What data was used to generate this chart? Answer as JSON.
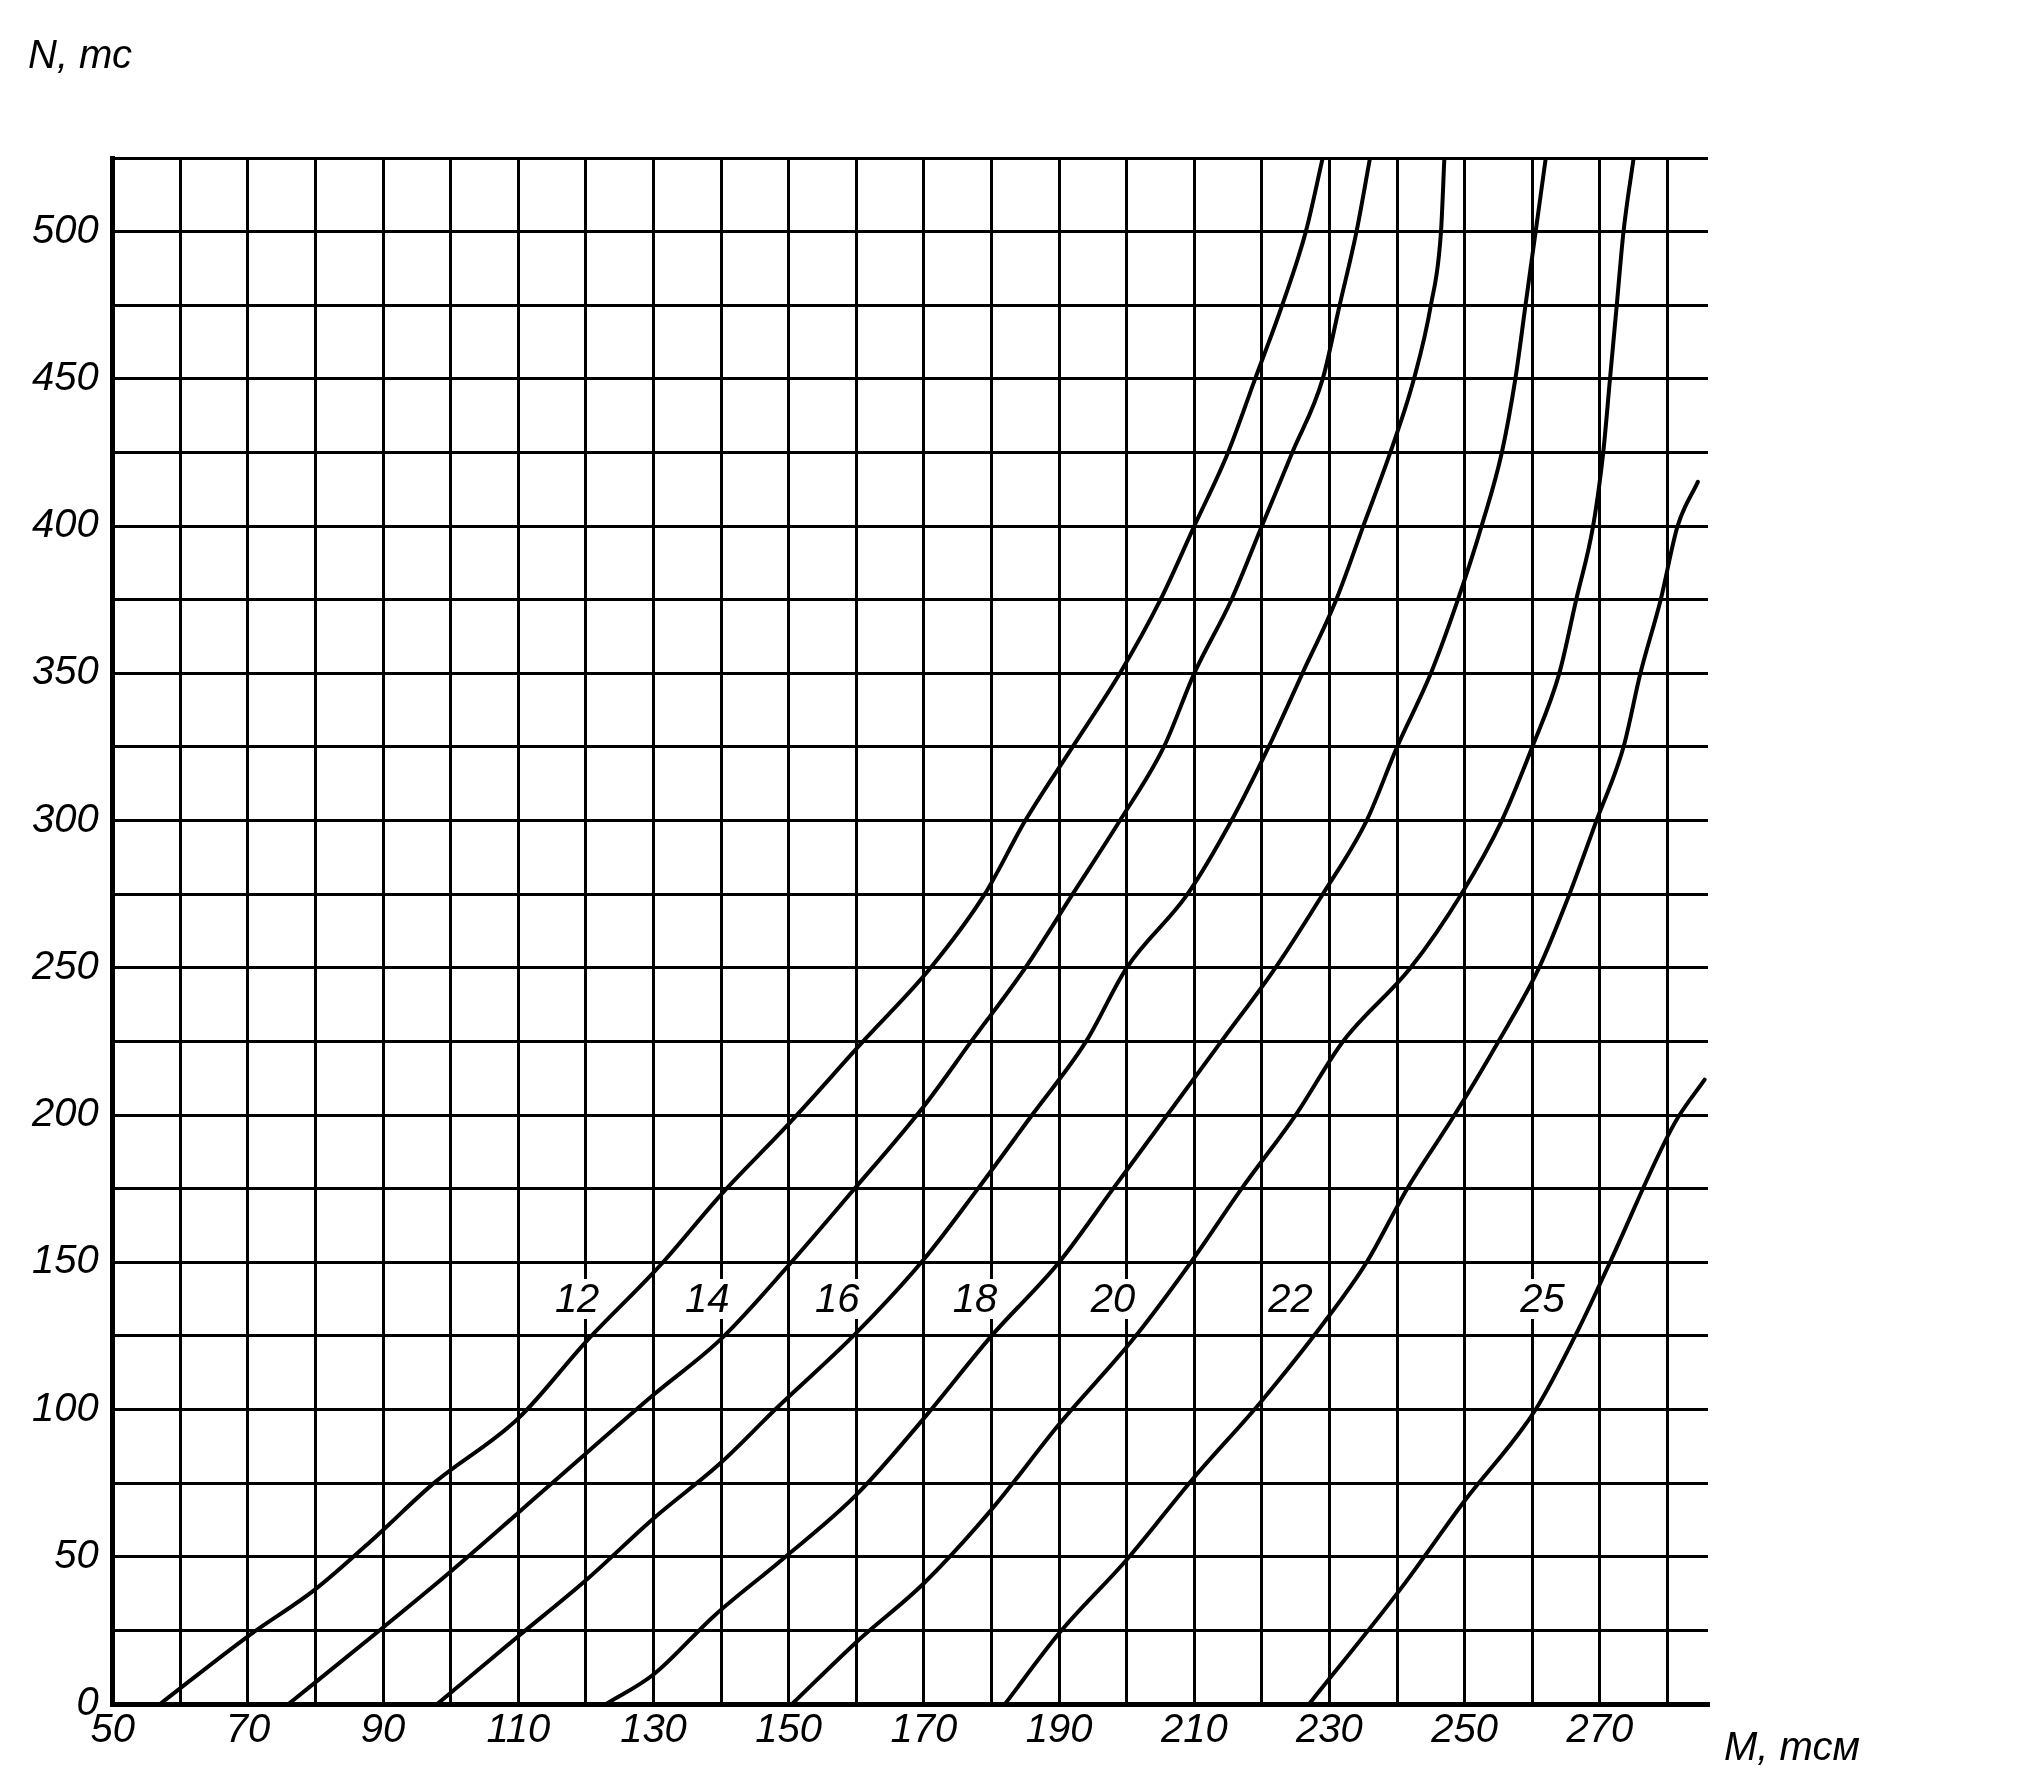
{
  "chart_data": {
    "type": "line",
    "xlabel": "M, тсм",
    "ylabel": "N, тс",
    "xlim": [
      50,
      286
    ],
    "ylim": [
      0,
      525
    ],
    "xticks": [
      50,
      {
        "value": 60,
        "label": null
      },
      70,
      {
        "value": 80,
        "label": null
      },
      90,
      {
        "value": 100,
        "label": null
      },
      110,
      {
        "value": 120,
        "label": null
      },
      130,
      {
        "value": 140,
        "label": null
      },
      150,
      {
        "value": 160,
        "label": null
      },
      170,
      {
        "value": 180,
        "label": null
      },
      190,
      {
        "value": 200,
        "label": null
      },
      210,
      {
        "value": 220,
        "label": null
      },
      230,
      {
        "value": 240,
        "label": null
      },
      250,
      {
        "value": 260,
        "label": null
      },
      270,
      {
        "value": 280,
        "label": null
      }
    ],
    "yticks": [
      0,
      {
        "value": 25,
        "label": null
      },
      50,
      {
        "value": 75,
        "label": null
      },
      100,
      {
        "value": 125,
        "label": null
      },
      150,
      {
        "value": 175,
        "label": null
      },
      200,
      {
        "value": 225,
        "label": null
      },
      250,
      {
        "value": 275,
        "label": null
      },
      300,
      {
        "value": 325,
        "label": null
      },
      350,
      {
        "value": 375,
        "label": null
      },
      400,
      {
        "value": 425,
        "label": null
      },
      450,
      {
        "value": 475,
        "label": null
      },
      500,
      {
        "value": 525,
        "label": null
      }
    ],
    "grid": true,
    "legend": false,
    "marker": "none",
    "line_style": "solid",
    "series": [
      {
        "name": "12",
        "color": "#000000",
        "x": [
          57,
          70,
          80,
          89,
          97.5,
          110,
          120,
          131,
          140,
          150,
          161,
          171,
          179,
          185,
          192,
          199,
          205,
          210,
          215,
          219,
          223,
          226.5,
          229
        ],
        "values": [
          0,
          23,
          39,
          57,
          75,
          97,
          123,
          149,
          173,
          197,
          225,
          250,
          275,
          300,
          325,
          350,
          375,
          400,
          425,
          450,
          475,
          500,
          525
        ]
      },
      {
        "name": "14",
        "color": "#000000",
        "x": [
          76,
          90,
          100,
          114.5,
          130,
          140,
          150,
          159,
          170,
          177,
          185,
          192,
          199,
          205.5,
          210,
          215.5,
          220,
          224.5,
          229,
          231.5,
          234,
          236
        ],
        "values": [
          0,
          26,
          45,
          74,
          105,
          124,
          149,
          173,
          203,
          225,
          250,
          275,
          300,
          325,
          350,
          375,
          400,
          425,
          450,
          475,
          500,
          525
        ]
      },
      {
        "name": "16",
        "color": "#000000",
        "x": [
          98,
          110,
          120,
          130,
          140,
          148,
          160,
          170,
          178,
          186,
          194,
          200,
          209,
          215.5,
          221,
          226,
          231,
          235,
          239,
          242.5,
          245,
          246.5,
          247
        ],
        "values": [
          0,
          23,
          42,
          63,
          82,
          100,
          126,
          151,
          175,
          200,
          225,
          250,
          275,
          300,
          325,
          350,
          375,
          400,
          425,
          450,
          475,
          500,
          525
        ]
      },
      {
        "name": "18",
        "color": "#000000",
        "x": [
          123,
          130,
          139,
          149,
          160,
          170,
          180,
          190,
          198,
          206,
          214,
          222,
          229,
          235.5,
          240,
          245,
          249,
          252.5,
          255.5,
          257.5,
          259,
          260.5,
          262
        ],
        "values": [
          0,
          10,
          30,
          49,
          71,
          97,
          125,
          150,
          175,
          200,
          225,
          250,
          275,
          300,
          325,
          350,
          375,
          400,
          425,
          450,
          475,
          500,
          525
        ]
      },
      {
        "name": "20",
        "color": "#000000",
        "x": [
          150.5,
          160,
          170,
          180,
          190,
          201,
          209.5,
          217,
          225,
          232,
          242,
          249.5,
          255.5,
          260,
          264,
          266.5,
          269,
          270.5,
          271.5,
          272.5,
          273.5,
          275
        ],
        "values": [
          0,
          21,
          41,
          66,
          95,
          124,
          150,
          175,
          200,
          225,
          250,
          275,
          300,
          325,
          350,
          375,
          400,
          425,
          450,
          475,
          500,
          525
        ]
      },
      {
        "name": "22",
        "color": "#000000",
        "x": [
          182,
          190,
          200,
          210,
          220,
          230,
          235.5,
          241.5,
          248.5,
          255,
          261,
          265.5,
          269.5,
          273.5,
          276,
          279,
          281.5,
          284.5
        ],
        "values": [
          0,
          24,
          49,
          77,
          103,
          132,
          150,
          175,
          200,
          225,
          250,
          275,
          300,
          325,
          350,
          375,
          400,
          415
        ]
      },
      {
        "name": "25",
        "color": "#000000",
        "x": [
          227,
          240.5,
          250,
          260.5,
          267,
          271.5,
          281,
          285.5
        ],
        "values": [
          0,
          39,
          69,
          100,
          128,
          150,
          197,
          212
        ]
      }
    ]
  }
}
